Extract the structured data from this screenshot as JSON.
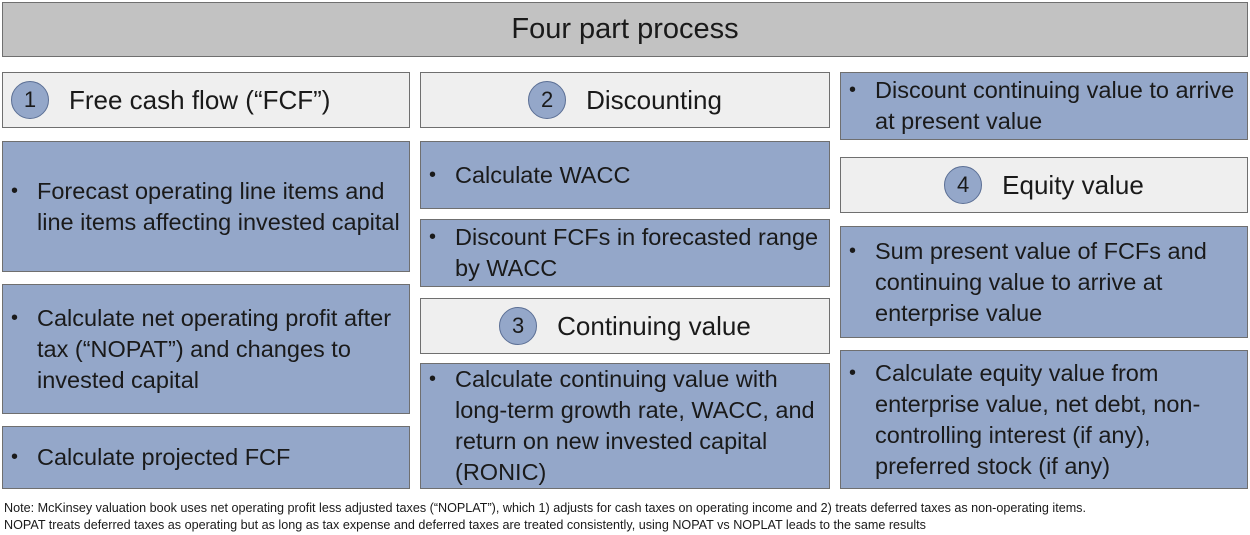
{
  "title": "Four part process",
  "sections": {
    "fcf": {
      "number": "1",
      "label": "Free cash flow (“FCF”)"
    },
    "discounting": {
      "number": "2",
      "label": "Discounting"
    },
    "continuing": {
      "number": "3",
      "label": "Continuing value"
    },
    "equity": {
      "number": "4",
      "label": "Equity value"
    }
  },
  "bullets": {
    "forecast": "Forecast operating line items and line items affecting invested capital",
    "nopat": "Calculate net operating profit after tax (“NOPAT”) and changes to invested capital",
    "projected_fcf": "Calculate projected FCF",
    "wacc": "Calculate WACC",
    "discount_fcfs": "Discount FCFs in forecasted range by WACC",
    "cv_calc": "Calculate continuing value with long-term growth rate, WACC, and return on new invested capital (RONIC)",
    "discount_cv": "Discount continuing value to arrive at present value",
    "sum_pv": "Sum present value of FCFs and continuing value to arrive at enterprise value",
    "equity_calc": "Calculate equity value from enterprise value, net debt, non-controlling interest (if any), preferred stock (if any)"
  },
  "bullet_symbol": "•",
  "note": {
    "line1": "Note: McKinsey valuation book uses net operating profit less adjusted taxes (“NOPLAT”), which 1) adjusts for cash taxes on operating income and 2) treats deferred taxes as non-operating items.",
    "line2": "NOPAT treats deferred taxes as operating but as long as tax expense and deferred taxes are treated consistently, using NOPAT vs NOPLAT leads to the same results"
  }
}
